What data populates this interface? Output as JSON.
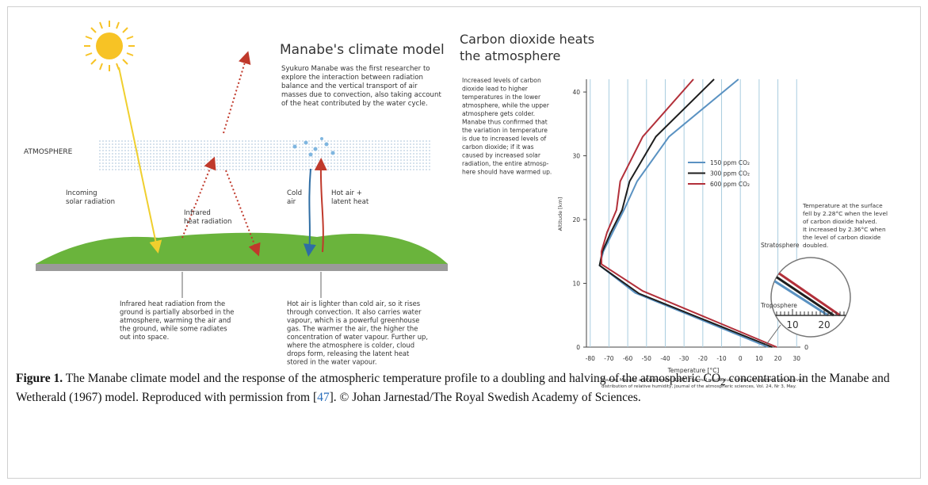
{
  "left_panel": {
    "title": "Manabe's climate model",
    "intro": [
      "Syukuro Manabe was the first researcher to",
      "explore the interaction between radiation",
      "balance and the vertical transport of air",
      "masses due to convection, also taking account",
      "of the heat contributed by the water cycle."
    ],
    "atmosphere_label": "ATMOSPHERE",
    "solar_label": [
      "Incoming",
      "solar radiation"
    ],
    "infrared_label": [
      "Infrared",
      "heat radiation"
    ],
    "cold_air_label": [
      "Cold",
      "air"
    ],
    "hot_air_label": [
      "Hot air +",
      "latent heat"
    ],
    "infrared_note": [
      "Infrared heat radiation from the",
      "ground is partially absorbed in the",
      "atmosphere, warming the air and",
      "the ground, while some radiates",
      "out into space."
    ],
    "convection_note": [
      "Hot air is lighter than cold air, so it rises",
      "through convection. It also carries water",
      "vapour, which is a powerful greenhouse",
      "gas. The warmer the air, the higher the",
      "concentration of water vapour. Further up,",
      "where the atmosphere is colder, cloud",
      "drops form, releasing the latent heat",
      "stored in the water vapour."
    ]
  },
  "chart_data": {
    "type": "line",
    "title": [
      "Carbon dioxide heats",
      "the atmosphere"
    ],
    "description": [
      "Increased levels of carbon",
      "dioxide lead to higher",
      "temperatures in the lower",
      "atmosphere, while the upper",
      "atmosphere gets colder.",
      "Manabe thus confirmed that",
      "the variation in temperature",
      "is due to increased levels of",
      "carbon dioxide; if it was",
      "caused by increased solar",
      "radiation, the entire atmosp-",
      "here should have warmed up."
    ],
    "xlabel": "Temperature [°C]",
    "ylabel": "Altitude [km]",
    "xlim": [
      -82,
      32
    ],
    "ylim": [
      0,
      42
    ],
    "xticks": [
      -80,
      -70,
      -60,
      -50,
      -40,
      -30,
      -20,
      -10,
      0,
      10,
      20,
      30
    ],
    "yticks": [
      0,
      10,
      20,
      30,
      40
    ],
    "grid": true,
    "series": [
      {
        "name": "150 ppm CO₂",
        "color": "#5a92c2",
        "x": [
          14.7,
          -56,
          -75,
          -73,
          -68,
          -62,
          -55,
          -38,
          -1
        ],
        "y": [
          0,
          8.5,
          12.8,
          15,
          18,
          21.5,
          26,
          33,
          42
        ]
      },
      {
        "name": "300 ppm CO₂",
        "color": "#1e1e1e",
        "x": [
          17,
          -54,
          -75,
          -73.5,
          -69,
          -63,
          -59,
          -45,
          -14
        ],
        "y": [
          0,
          8.4,
          12.8,
          15,
          18,
          21.5,
          26,
          33,
          42
        ]
      },
      {
        "name": "600 ppm CO₂",
        "color": "#b2303a",
        "x": [
          19.4,
          -52,
          -74,
          -74,
          -71,
          -66,
          -64,
          -52,
          -25
        ],
        "y": [
          0,
          8.8,
          13,
          15,
          18,
          21.5,
          26,
          33,
          42
        ]
      }
    ],
    "stratosphere_label": "Stratosphere",
    "troposphere_label": "Troposphere",
    "annotation": [
      "Temperature at the surface",
      "fell by 2.28°C when the level",
      "of carbon dioxide halved.",
      "It increased by 2.36°C when",
      "the level of carbon dioxide",
      "doubled."
    ],
    "inset": {
      "ticks": [
        10,
        20
      ],
      "baseline": 0
    },
    "source": [
      "Source: Manabe and Wetherald (1967) Thermal equilibrium of the atmosphere with a given",
      "distribution of relative humidity, Journal of the atmospheric sciences, Vol. 24, Nr 3, May."
    ]
  },
  "caption": {
    "label": "Figure 1.",
    "text_1": "The Manabe climate model and the response of the atmospheric temperature profile to a doubling and halving of the atmospheric CO",
    "subscript": "2",
    "text_2": " concentration in the Manabe and Wetherald (1967) model. Reproduced with permission from [",
    "citation": "47",
    "text_3": "]. © Johan Jarnestad/The Royal Swedish Academy of Sciences."
  }
}
